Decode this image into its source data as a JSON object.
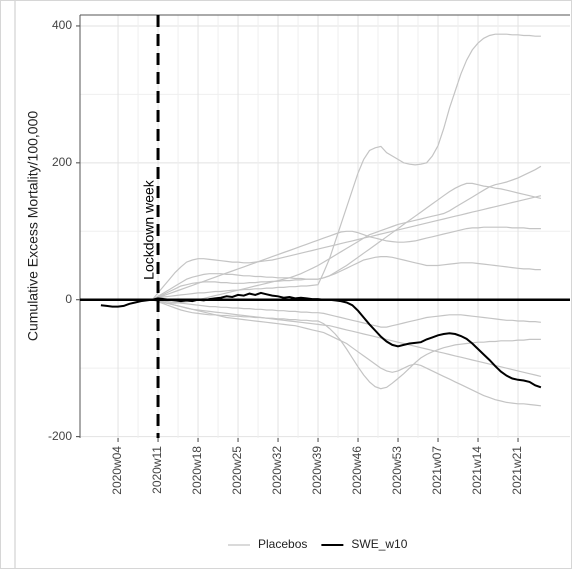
{
  "chart_data": {
    "type": "line",
    "y_label": "Cumulative Excess Mortality/100,000",
    "categories": [
      null,
      null,
      null,
      "2020w04",
      null,
      null,
      null,
      null,
      null,
      null,
      "2020w11",
      null,
      null,
      null,
      null,
      null,
      null,
      "2020w18",
      null,
      null,
      null,
      null,
      null,
      null,
      "2020w25",
      null,
      null,
      null,
      null,
      null,
      null,
      "2020w32",
      null,
      null,
      null,
      null,
      null,
      null,
      "2020w39",
      null,
      null,
      null,
      null,
      null,
      null,
      "2020w46",
      null,
      null,
      null,
      null,
      null,
      null,
      "2020w53",
      null,
      null,
      null,
      null,
      null,
      null,
      "2021w07",
      null,
      null,
      null,
      null,
      null,
      null,
      "2021w14",
      null,
      null,
      null,
      null,
      null,
      null,
      "2021w21",
      null,
      null,
      null,
      null
    ],
    "ylim": [
      -202,
      416
    ],
    "yticks": [
      -200,
      0,
      200,
      400
    ],
    "grid": true,
    "hline": 0,
    "annotation": {
      "text": "Lockdown week",
      "x": "2020w11"
    },
    "legend": "bottom",
    "series": [
      {
        "name": "Placebos",
        "color": "#c4c4c4",
        "lines": [
          [
            null,
            null,
            null,
            null,
            null,
            null,
            null,
            null,
            null,
            0,
            2,
            4,
            5,
            6,
            7,
            8,
            9,
            10,
            10,
            11,
            12,
            12,
            13,
            14,
            14,
            15,
            15,
            16,
            16,
            17,
            17,
            18,
            18,
            19,
            19,
            20,
            20,
            21,
            22,
            40,
            60,
            85,
            110,
            135,
            160,
            185,
            205,
            218,
            222,
            224,
            215,
            210,
            205,
            200,
            198,
            197,
            198,
            200,
            210,
            225,
            250,
            280,
            305,
            330,
            350,
            365,
            375,
            382,
            386,
            388,
            388,
            388,
            387,
            387,
            386,
            386,
            385,
            385
          ],
          [
            null,
            null,
            null,
            null,
            null,
            null,
            null,
            null,
            null,
            0,
            -2,
            -4,
            -5,
            -5,
            -4,
            -3,
            -2,
            0,
            2,
            4,
            6,
            8,
            10,
            12,
            14,
            16,
            18,
            20,
            22,
            24,
            26,
            28,
            30,
            32,
            35,
            38,
            42,
            46,
            50,
            55,
            60,
            65,
            70,
            75,
            80,
            85,
            90,
            95,
            98,
            101,
            104,
            107,
            110,
            112,
            114,
            116,
            118,
            120,
            122,
            124,
            126,
            130,
            135,
            140,
            145,
            150,
            155,
            160,
            165,
            168,
            170,
            172,
            175,
            178,
            182,
            186,
            190,
            195
          ],
          [
            null,
            null,
            null,
            null,
            null,
            null,
            null,
            null,
            null,
            0,
            5,
            10,
            15,
            20,
            25,
            30,
            33,
            35,
            37,
            38,
            38,
            38,
            37,
            37,
            36,
            35,
            35,
            34,
            34,
            33,
            33,
            32,
            32,
            32,
            31,
            31,
            30,
            30,
            30,
            32,
            35,
            40,
            45,
            50,
            56,
            62,
            68,
            74,
            80,
            86,
            92,
            98,
            104,
            110,
            116,
            122,
            128,
            134,
            140,
            146,
            152,
            158,
            163,
            167,
            170,
            170,
            168,
            166,
            165,
            163,
            162,
            160,
            158,
            156,
            154,
            152,
            150,
            148
          ],
          [
            null,
            null,
            null,
            null,
            null,
            null,
            null,
            null,
            null,
            0,
            10,
            20,
            30,
            40,
            48,
            55,
            58,
            60,
            60,
            59,
            58,
            57,
            56,
            55,
            55,
            54,
            54,
            55,
            56,
            57,
            58,
            60,
            62,
            64,
            66,
            68,
            70,
            72,
            74,
            76,
            78,
            80,
            82,
            84,
            86,
            88,
            90,
            92,
            94,
            96,
            98,
            100,
            102,
            104,
            106,
            108,
            110,
            112,
            114,
            116,
            118,
            120,
            122,
            124,
            126,
            128,
            130,
            132,
            134,
            136,
            138,
            140,
            142,
            144,
            146,
            148,
            150,
            152
          ],
          [
            null,
            null,
            null,
            null,
            null,
            null,
            null,
            null,
            null,
            0,
            -2,
            -4,
            -6,
            -8,
            -10,
            -12,
            -14,
            -16,
            -18,
            -20,
            -22,
            -24,
            -26,
            -27,
            -28,
            -29,
            -30,
            -31,
            -32,
            -33,
            -34,
            -35,
            -36,
            -37,
            -38,
            -40,
            -42,
            -44,
            -46,
            -48,
            -52,
            -56,
            -60,
            -64,
            -70,
            -76,
            -82,
            -88,
            -94,
            -100,
            -104,
            -106,
            -104,
            -100,
            -96,
            -94,
            -96,
            -100,
            -104,
            -108,
            -112,
            -116,
            -120,
            -124,
            -128,
            -132,
            -136,
            -140,
            -143,
            -146,
            -148,
            -150,
            -151,
            -152,
            -152,
            -153,
            -154,
            -155
          ],
          [
            null,
            null,
            null,
            null,
            null,
            null,
            null,
            null,
            null,
            0,
            3,
            6,
            9,
            12,
            15,
            18,
            21,
            24,
            27,
            30,
            33,
            36,
            39,
            42,
            45,
            48,
            51,
            54,
            57,
            60,
            63,
            66,
            69,
            72,
            75,
            78,
            81,
            84,
            87,
            90,
            93,
            96,
            99,
            100,
            100,
            98,
            95,
            92,
            90,
            88,
            86,
            85,
            84,
            84,
            85,
            86,
            88,
            90,
            92,
            94,
            96,
            98,
            100,
            102,
            104,
            105,
            105,
            106,
            106,
            106,
            106,
            106,
            105,
            105,
            105,
            104,
            104,
            104
          ],
          [
            null,
            null,
            null,
            null,
            null,
            null,
            null,
            null,
            null,
            0,
            -1,
            -2,
            -3,
            -4,
            -5,
            -6,
            -7,
            -8,
            -9,
            -10,
            -10,
            -11,
            -11,
            -12,
            -12,
            -13,
            -13,
            -14,
            -14,
            -15,
            -15,
            -16,
            -16,
            -17,
            -17,
            -18,
            -18,
            -19,
            -19,
            -20,
            -22,
            -24,
            -26,
            -28,
            -30,
            -32,
            -34,
            -36,
            -38,
            -40,
            -40,
            -38,
            -36,
            -34,
            -32,
            -30,
            -28,
            -26,
            -25,
            -24,
            -23,
            -22,
            -22,
            -22,
            -23,
            -24,
            -25,
            -26,
            -27,
            -28,
            -29,
            -30,
            -30,
            -31,
            -31,
            -32,
            -32,
            -33
          ],
          [
            null,
            null,
            null,
            null,
            null,
            null,
            null,
            null,
            null,
            0,
            4,
            8,
            12,
            16,
            20,
            22,
            24,
            25,
            26,
            26,
            26,
            25,
            25,
            24,
            24,
            24,
            25,
            25,
            26,
            26,
            27,
            27,
            28,
            28,
            29,
            29,
            30,
            30,
            30,
            32,
            35,
            38,
            42,
            46,
            50,
            54,
            58,
            60,
            62,
            63,
            63,
            62,
            60,
            58,
            56,
            54,
            52,
            50,
            50,
            50,
            51,
            52,
            53,
            54,
            54,
            54,
            53,
            52,
            51,
            50,
            49,
            48,
            47,
            46,
            45,
            45,
            44,
            44
          ],
          [
            null,
            null,
            null,
            null,
            null,
            null,
            null,
            null,
            null,
            0,
            -3,
            -6,
            -9,
            -12,
            -15,
            -17,
            -19,
            -20,
            -21,
            -22,
            -22,
            -23,
            -23,
            -24,
            -24,
            -25,
            -25,
            -26,
            -26,
            -27,
            -27,
            -28,
            -28,
            -29,
            -29,
            -30,
            -30,
            -31,
            -31,
            -35,
            -42,
            -50,
            -60,
            -72,
            -85,
            -98,
            -110,
            -120,
            -127,
            -130,
            -128,
            -122,
            -115,
            -108,
            -100,
            -92,
            -85,
            -80,
            -76,
            -73,
            -70,
            -68,
            -66,
            -65,
            -64,
            -63,
            -62,
            -62,
            -61,
            -61,
            -60,
            -60,
            -60,
            -59,
            -59,
            -58,
            -58,
            -58
          ],
          [
            null,
            null,
            null,
            null,
            null,
            null,
            null,
            null,
            null,
            0,
            -2,
            -4,
            -6,
            -8,
            -10,
            -12,
            -14,
            -15,
            -16,
            -17,
            -18,
            -19,
            -20,
            -21,
            -22,
            -23,
            -24,
            -25,
            -26,
            -27,
            -28,
            -29,
            -30,
            -31,
            -32,
            -33,
            -34,
            -35,
            -36,
            -37,
            -38,
            -40,
            -42,
            -44,
            -46,
            -48,
            -50,
            -52,
            -54,
            -56,
            -58,
            -60,
            -62,
            -64,
            -66,
            -68,
            -70,
            -72,
            -74,
            -76,
            -78,
            -80,
            -82,
            -84,
            -86,
            -88,
            -90,
            -92,
            -94,
            -96,
            -98,
            -100,
            -102,
            -104,
            -106,
            -108,
            -110,
            -112
          ]
        ]
      },
      {
        "name": "SWE_w10",
        "color": "#000000",
        "values": [
          -8,
          -9,
          -10,
          -10,
          -9,
          -6,
          -4,
          -2,
          -1,
          0,
          2,
          1,
          0,
          -1,
          -2,
          -1,
          -2,
          0,
          -1,
          1,
          2,
          3,
          5,
          4,
          7,
          6,
          9,
          7,
          10,
          8,
          6,
          5,
          3,
          4,
          2,
          3,
          2,
          1,
          1,
          0,
          0,
          -1,
          -2,
          -4,
          -8,
          -16,
          -26,
          -36,
          -45,
          -54,
          -61,
          -66,
          -68,
          -66,
          -64,
          -63,
          -62,
          -58,
          -55,
          -52,
          -50,
          -49,
          -50,
          -53,
          -57,
          -64,
          -72,
          -80,
          -88,
          -97,
          -105,
          -111,
          -115,
          -117,
          -118,
          -120,
          -125,
          -128
        ]
      }
    ]
  }
}
